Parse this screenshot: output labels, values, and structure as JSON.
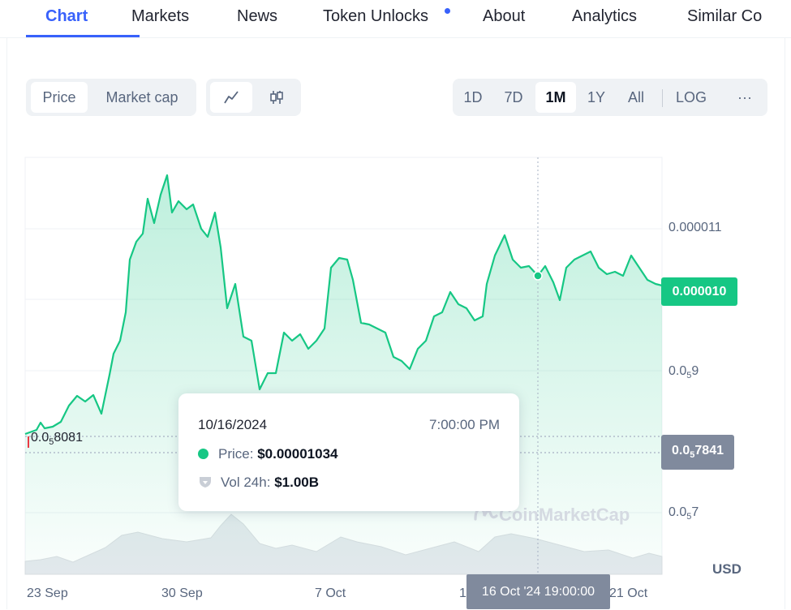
{
  "tabs": [
    {
      "label": "Chart",
      "active": true
    },
    {
      "label": "Markets"
    },
    {
      "label": "News"
    },
    {
      "label": "Token Unlocks",
      "has_dot": true
    },
    {
      "label": "About"
    },
    {
      "label": "Analytics"
    },
    {
      "label": "Similar Co"
    }
  ],
  "toolbar": {
    "metric_buttons": [
      "Price",
      "Market cap"
    ],
    "selected_metric": "Price",
    "chart_style_icons": [
      "line-chart-icon",
      "candlestick-icon"
    ],
    "ranges": [
      "1D",
      "7D",
      "1M",
      "1Y",
      "All"
    ],
    "selected_range": "1M",
    "log_label": "LOG",
    "more_label": "···"
  },
  "chart": {
    "y_labels": {
      "top": "0.000011",
      "mid_base": "0.0",
      "mid_sub": "5",
      "mid_tail": "9",
      "low_base": "0.0",
      "low_sub": "5",
      "low_tail": "7"
    },
    "current_price_tag": "0.000010",
    "min_tag": {
      "base": "0.0",
      "sub": "5",
      "tail": "7841"
    },
    "left_label": {
      "base": "0.0",
      "sub": "5",
      "tail": "8081"
    },
    "x_labels": [
      "23 Sep",
      "30 Sep",
      "7 Oct",
      "1",
      "21 Oct"
    ],
    "crosshair_date": "16 Oct '24 19:00:00",
    "currency": "USD",
    "watermark": "CoinMarketCap",
    "accent_color": "#16c784",
    "tab_accent": "#3861fb"
  },
  "tooltip": {
    "date": "10/16/2024",
    "time": "7:00:00 PM",
    "price_label": "Price:",
    "price_value": "$0.00001034",
    "vol_label": "Vol 24h:",
    "vol_value": "$1.00B"
  }
}
